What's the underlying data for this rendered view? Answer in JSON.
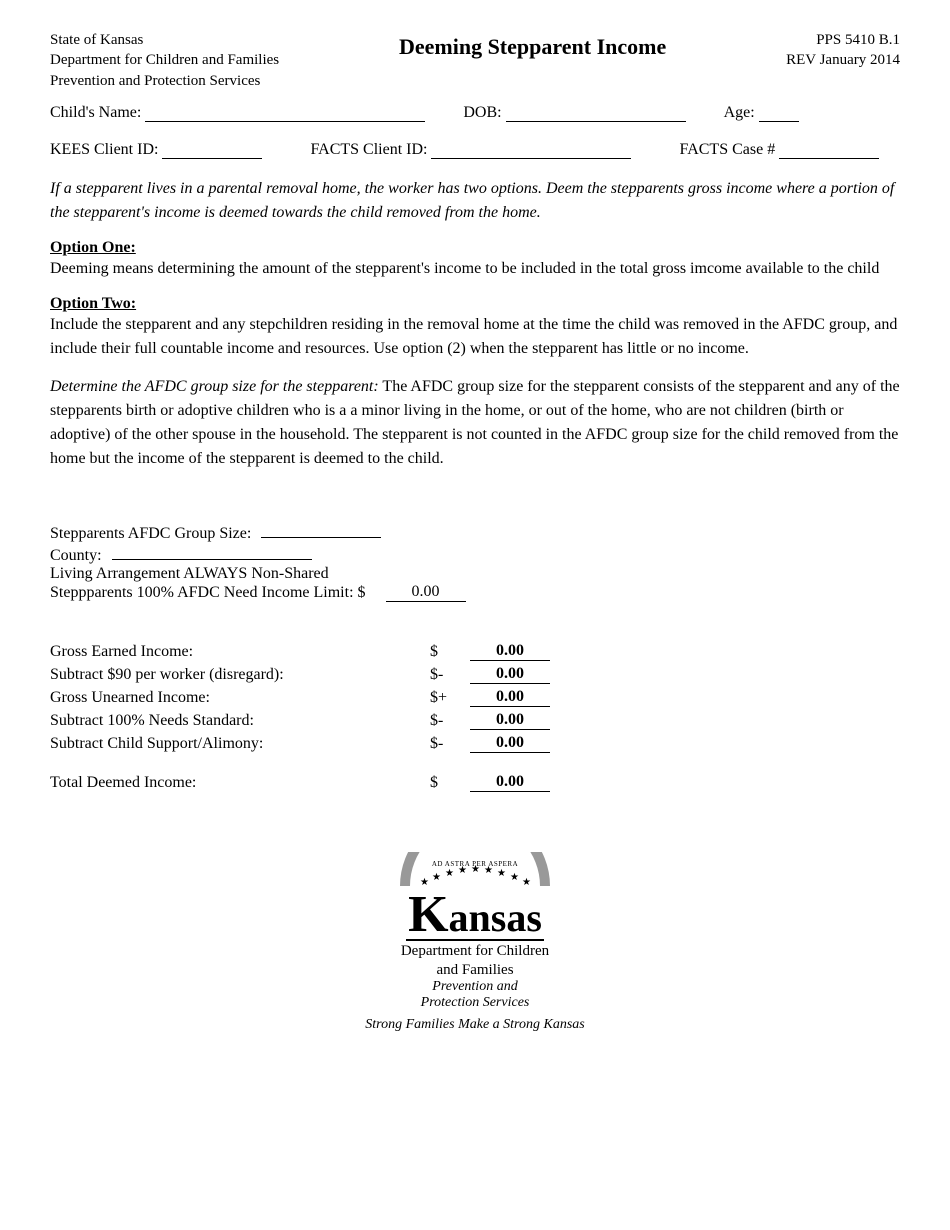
{
  "header": {
    "agency_line1": "State of Kansas",
    "agency_line2": "Department for Children and Families",
    "agency_line3": "Prevention and Protection Services",
    "title": "Deeming Stepparent Income",
    "form_id": "PPS 5410 B.1",
    "revision": "REV January 2014"
  },
  "fields": {
    "child_name_label": "Child's Name:",
    "dob_label": "DOB:",
    "age_label": "Age:",
    "kees_label": "KEES Client ID:",
    "facts_client_label": "FACTS Client ID:",
    "facts_case_label": "FACTS Case #"
  },
  "intro": "If a stepparent lives in a parental removal home, the worker has two options.  Deem the stepparents gross income where a portion of the stepparent's income is deemed towards the child removed from the home.",
  "option1": {
    "head": "Option One:",
    "body": "Deeming means determining the amount of the stepparent's income to be included in the total gross imcome available to the child"
  },
  "option2": {
    "head": "Option Two:",
    "body": "Include the stepparent and any stepchildren residing in the removal home at the time the child was removed in the AFDC group, and include their full countable income and resources.  Use option (2) when the stepparent has little or no income."
  },
  "determine": {
    "lead": "Determine the AFDC group size for the stepparent:",
    "body": "  The AFDC group size for the stepparent consists of the stepparent and any of the stepparents birth or adoptive children who is a a minor living in the home, or out of the home, who are not children (birth or adoptive) of the  other spouse in the household.  The stepparent is not counted in the AFDC group size for the child removed from the home but the income of the stepparent is deemed to the child."
  },
  "calc": {
    "group_size_label": "Stepparents AFDC Group Size:",
    "county_label": "County:",
    "living_label": "Living Arrangement ALWAYS Non-Shared",
    "need_limit_label": "Steppparents 100% AFDC Need Income Limit:  $",
    "need_limit_val": "0.00",
    "rows": [
      {
        "label": "Gross Earned Income:",
        "sign": "$",
        "val": "0.00"
      },
      {
        "label": "Subtract $90 per worker (disregard):",
        "sign": "$-",
        "val": "0.00"
      },
      {
        "label": "Gross Unearned Income:",
        "sign": "$+",
        "val": "0.00"
      },
      {
        "label": "Subtract 100% Needs Standard:",
        "sign": "$-",
        "val": "0.00"
      },
      {
        "label": "Subtract Child Support/Alimony:",
        "sign": "$-",
        "val": "0.00"
      }
    ],
    "total_label": "Total Deemed Income:",
    "total_sign": "$",
    "total_val": "0.00"
  },
  "footer": {
    "motto": "AD ASTRA PER ASPERA",
    "dept1": "Department for Children",
    "dept2": "and Families",
    "svc1": "Prevention and",
    "svc2": "Protection Services",
    "tagline": "Strong Families Make a Strong Kansas"
  }
}
